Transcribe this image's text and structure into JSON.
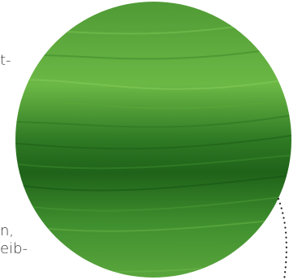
{
  "text_fragments": [
    "t-",
    "n,",
    "eib-"
  ]
}
